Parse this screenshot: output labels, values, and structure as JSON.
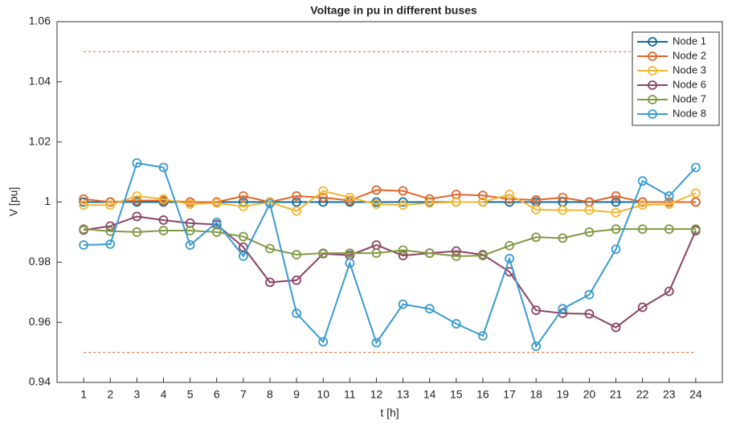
{
  "chart_data": {
    "type": "line",
    "title": "Voltage in pu in different buses",
    "x_label": "t [h]",
    "y_label": "V [pu]",
    "x": [
      1,
      2,
      3,
      4,
      5,
      6,
      7,
      8,
      9,
      10,
      11,
      12,
      13,
      14,
      15,
      16,
      17,
      18,
      19,
      20,
      21,
      22,
      23,
      24
    ],
    "xlim": [
      0,
      25
    ],
    "xticks": [
      1,
      2,
      3,
      4,
      5,
      6,
      7,
      8,
      9,
      10,
      11,
      12,
      13,
      14,
      15,
      16,
      17,
      18,
      19,
      20,
      21,
      22,
      23,
      24
    ],
    "ylim": [
      0.94,
      1.06
    ],
    "yticks": [
      0.94,
      0.96,
      0.98,
      1,
      1.02,
      1.04,
      1.06
    ],
    "hlines": [
      1.05,
      0.95
    ],
    "hline_color": "#f0703a",
    "grid": false,
    "legend": "upper right",
    "series": [
      {
        "name": "Node 1",
        "color": "#0f6a9e",
        "values": [
          1,
          1,
          1,
          1,
          1,
          1,
          1,
          1,
          1,
          1,
          1,
          1,
          1,
          1,
          1,
          1,
          1,
          1,
          1,
          1,
          1,
          1,
          1,
          1
        ]
      },
      {
        "name": "Node 2",
        "color": "#e0662a",
        "values": [
          1.001,
          1.0,
          1.0005,
          1.0005,
          1.0,
          1.0,
          1.002,
          1.0,
          1.002,
          1.0015,
          1.0005,
          1.004,
          1.0037,
          1.001,
          1.0025,
          1.0022,
          1.001,
          1.0007,
          1.0015,
          1.0,
          1.002,
          1.0,
          1.0,
          1.0
        ]
      },
      {
        "name": "Node 3",
        "color": "#f2b632",
        "values": [
          0.999,
          0.999,
          1.002,
          1.001,
          0.9993,
          0.9997,
          0.9985,
          1.0,
          0.997,
          1.0037,
          1.0015,
          0.9993,
          0.999,
          0.9997,
          1.0,
          1.0,
          1.0025,
          0.9975,
          0.9973,
          0.9973,
          0.9965,
          0.999,
          0.9993,
          1.003
        ]
      },
      {
        "name": "Node 6",
        "color": "#8c4466",
        "values": [
          0.9907,
          0.992,
          0.9952,
          0.994,
          0.993,
          0.9925,
          0.985,
          0.9733,
          0.974,
          0.9828,
          0.9823,
          0.9857,
          0.9822,
          0.983,
          0.9837,
          0.9825,
          0.9768,
          0.964,
          0.963,
          0.9628,
          0.9583,
          0.965,
          0.9703,
          0.9905
        ]
      },
      {
        "name": "Node 7",
        "color": "#7f9a42",
        "values": [
          0.991,
          0.9903,
          0.99,
          0.9905,
          0.9905,
          0.99,
          0.9885,
          0.9845,
          0.9825,
          0.983,
          0.983,
          0.983,
          0.984,
          0.983,
          0.982,
          0.9822,
          0.9855,
          0.9883,
          0.988,
          0.99,
          0.991,
          0.991,
          0.991,
          0.991
        ]
      },
      {
        "name": "Node 8",
        "color": "#3a9bd0",
        "values": [
          0.9857,
          0.986,
          1.013,
          1.0115,
          0.9857,
          0.9932,
          0.982,
          0.9995,
          0.963,
          0.9535,
          0.9797,
          0.9532,
          0.966,
          0.9645,
          0.9595,
          0.9555,
          0.9812,
          0.952,
          0.9645,
          0.9692,
          0.9843,
          1.007,
          1.002,
          1.0115
        ]
      }
    ]
  }
}
